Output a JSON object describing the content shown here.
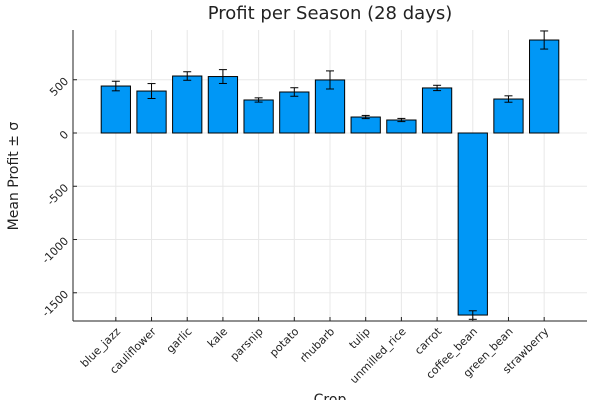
{
  "chart_data": {
    "type": "bar",
    "title": "Profit per Season (28 days)",
    "x_label": "Crop",
    "y_label": "Mean Profit ± σ",
    "categories": [
      "blue_jazz",
      "cauliflower",
      "garlic",
      "kale",
      "parsnip",
      "potato",
      "rhubarb",
      "tulip",
      "unmilled_rice",
      "carrot",
      "coffee_bean",
      "green_bean",
      "strawberry"
    ],
    "values": [
      441,
      394,
      535,
      530,
      310,
      385,
      498,
      150,
      122,
      423,
      -1709,
      319,
      873
    ],
    "errors": [
      45,
      70,
      40,
      65,
      20,
      40,
      85,
      15,
      15,
      25,
      40,
      30,
      85
    ],
    "color": "#0097f6",
    "ylim": [
      -1765,
      967
    ],
    "yticks": [
      -1500,
      -1000,
      -500,
      0,
      500
    ],
    "grid": true
  }
}
